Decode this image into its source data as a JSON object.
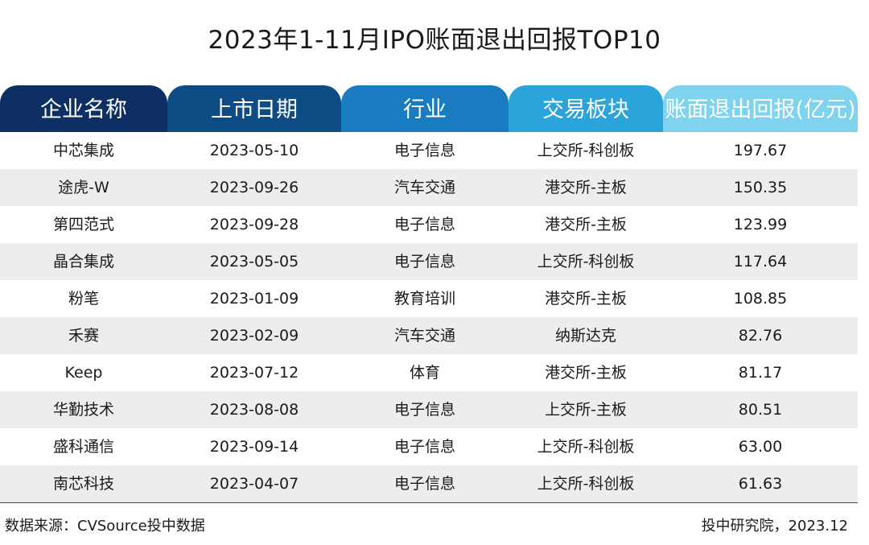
{
  "chart_data": {
    "type": "table",
    "title": "2023年1-11月IPO账面退出回报TOP10",
    "columns": [
      "企业名称",
      "上市日期",
      "行业",
      "交易板块",
      "账面退出回报(亿元)"
    ],
    "header_colors": [
      "#0d2f63",
      "#0f4c86",
      "#1a7cc0",
      "#2aa4db",
      "#7fd3ee"
    ],
    "rows": [
      [
        "中芯集成",
        "2023-05-10",
        "电子信息",
        "上交所-科创板",
        "197.67"
      ],
      [
        "途虎-W",
        "2023-09-26",
        "汽车交通",
        "港交所-主板",
        "150.35"
      ],
      [
        "第四范式",
        "2023-09-28",
        "电子信息",
        "港交所-主板",
        "123.99"
      ],
      [
        "晶合集成",
        "2023-05-05",
        "电子信息",
        "上交所-科创板",
        "117.64"
      ],
      [
        "粉笔",
        "2023-01-09",
        "教育培训",
        "港交所-主板",
        "108.85"
      ],
      [
        "禾赛",
        "2023-02-09",
        "汽车交通",
        "纳斯达克",
        "82.76"
      ],
      [
        "Keep",
        "2023-07-12",
        "体育",
        "港交所-主板",
        "81.17"
      ],
      [
        "华勤技术",
        "2023-08-08",
        "电子信息",
        "上交所-主板",
        "80.51"
      ],
      [
        "盛科通信",
        "2023-09-14",
        "电子信息",
        "上交所-科创板",
        "63.00"
      ],
      [
        "南芯科技",
        "2023-04-07",
        "电子信息",
        "上交所-科创板",
        "61.63"
      ]
    ],
    "source": "数据来源：CVSource投中数据",
    "credit": "投中研究院，2023.12"
  }
}
